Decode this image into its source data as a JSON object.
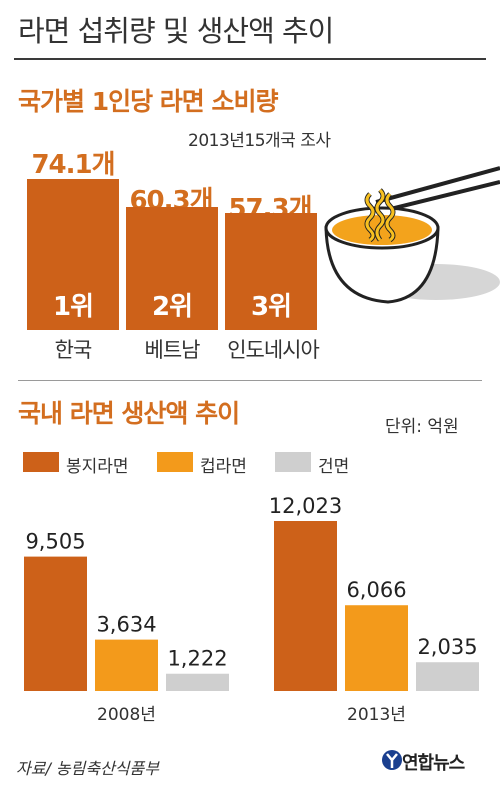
{
  "title": "라면 섭취량 및 생산액 추이",
  "source": "자료/ 농림축산식품부",
  "brand": "연합뉴스",
  "colors": {
    "accent": "#d36e1f",
    "bag_noodle": "#cd6119",
    "cup_noodle": "#f39a1b",
    "dry_noodle": "#cfcfcf"
  },
  "chart_data": [
    {
      "type": "bar",
      "title": "국가별 1인당 라면 소비량",
      "subtitle": "2013년15개국 조사",
      "categories": [
        "한국",
        "베트남",
        "인도네시아"
      ],
      "values": [
        74.1,
        60.3,
        57.3
      ],
      "value_labels": [
        "74.1개",
        "60.3개",
        "57.3개"
      ],
      "ranks": [
        "1위",
        "2위",
        "3위"
      ]
    },
    {
      "type": "bar",
      "title": "국내 라면 생산액 추이",
      "unit": "단위: 억원",
      "categories": [
        "2008년",
        "2013년"
      ],
      "legend_position": "top-left",
      "series": [
        {
          "name": "봉지라면",
          "values": [
            9505,
            12023
          ],
          "labels": [
            "9,505",
            "12,023"
          ],
          "color": "#cd6119"
        },
        {
          "name": "컵라면",
          "values": [
            3634,
            6066
          ],
          "labels": [
            "3,634",
            "6,066"
          ],
          "color": "#f39a1b"
        },
        {
          "name": "건면",
          "values": [
            1222,
            2035
          ],
          "labels": [
            "1,222",
            "2,035"
          ],
          "color": "#cfcfcf"
        }
      ]
    }
  ]
}
